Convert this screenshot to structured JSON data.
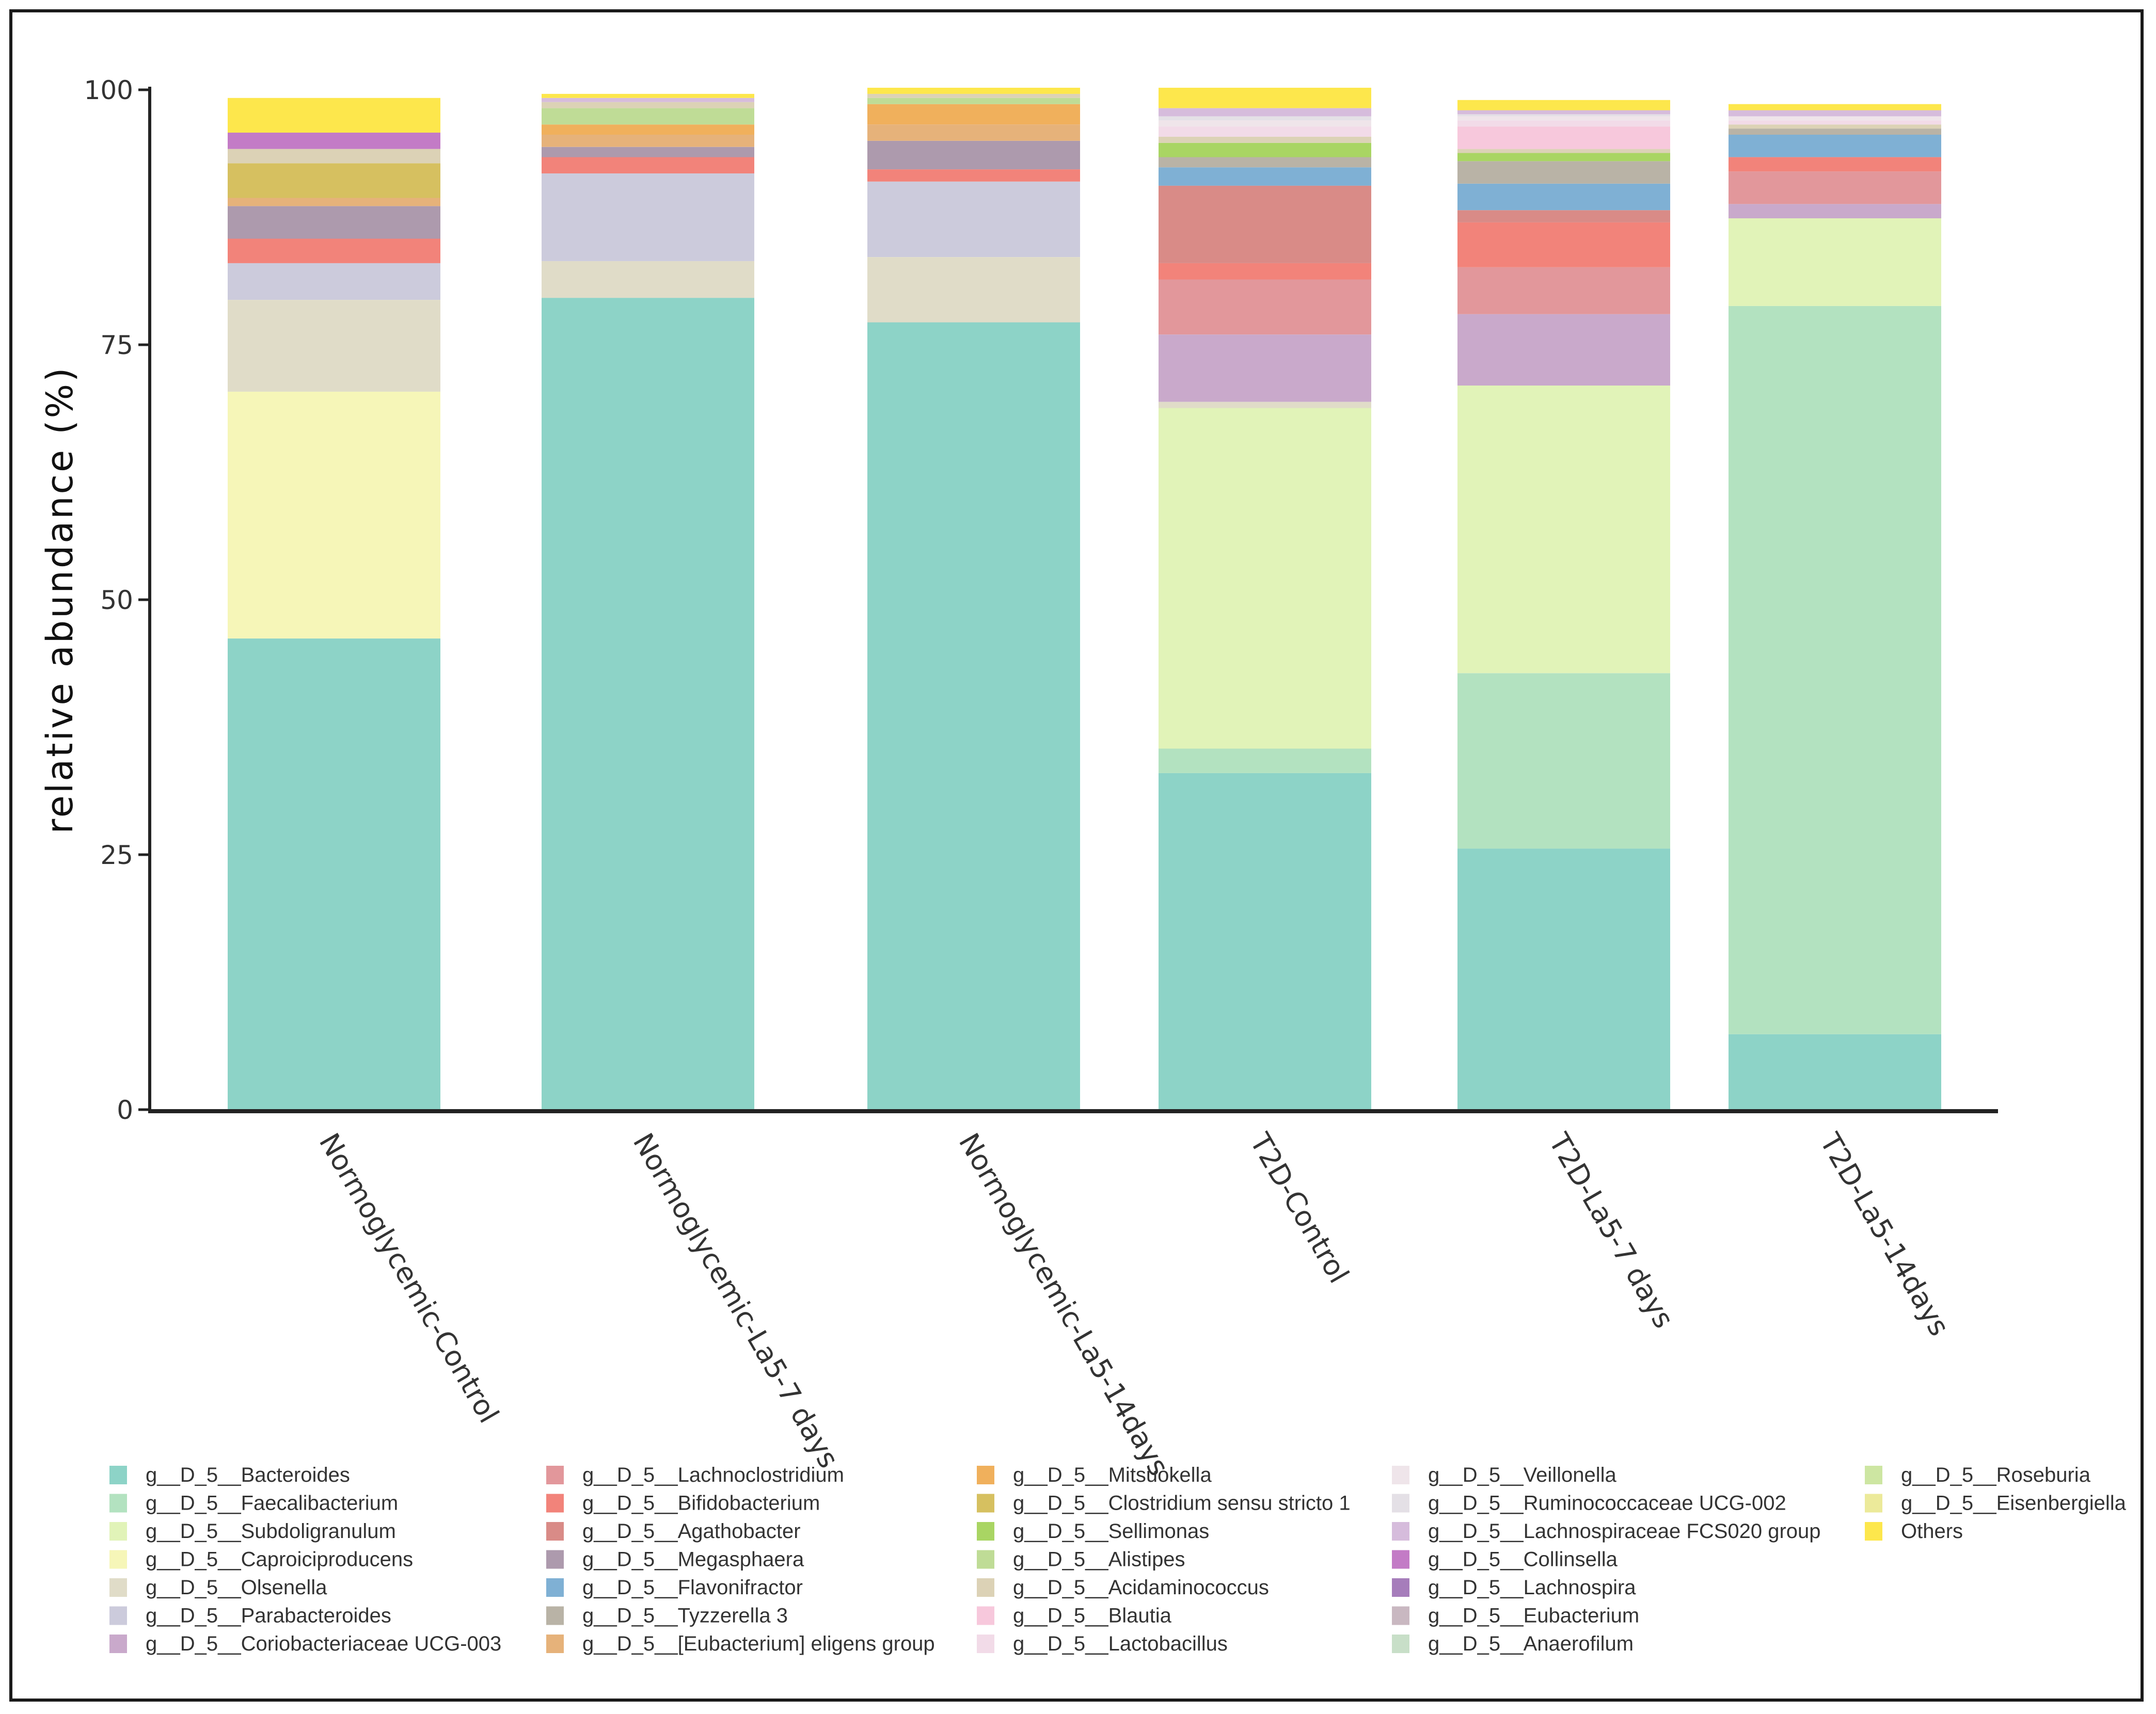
{
  "chart_data": {
    "type": "bar",
    "stacked": true,
    "ylabel": "relative abundance (%)",
    "xlabel": "",
    "ylim": [
      0,
      100
    ],
    "yticks": [
      0,
      25,
      50,
      75,
      100
    ],
    "grid": false,
    "legend_position": "bottom",
    "categories": [
      "Normoglycemic-Control",
      "Normoglycemic-La5-7 days",
      "Normoglycemic-La5-14days",
      "T2D-Control",
      "T2D-La5-7 days",
      "T2D-La5-14days"
    ],
    "series": [
      {
        "name": "g__D_5__Bacteroides",
        "color": "#8dd3c7",
        "values": [
          46.2,
          79.6,
          77.2,
          33.0,
          25.6,
          7.4
        ]
      },
      {
        "name": "g__D_5__Faecalibacterium",
        "color": "#b3e2c0",
        "values": [
          0,
          0,
          0,
          2.4,
          17.2,
          71.4
        ]
      },
      {
        "name": "g__D_5__Subdoligranulum",
        "color": "#e1f3b8",
        "values": [
          0,
          0,
          0,
          33.4,
          28.2,
          8.6
        ]
      },
      {
        "name": "g__D_5__Caproiciproducens",
        "color": "#f6f6b8",
        "values": [
          24.2,
          0,
          0,
          0,
          0,
          0
        ]
      },
      {
        "name": "g__D_5__Olsenella",
        "color": "#e0dcc8",
        "values": [
          9.0,
          3.6,
          6.4,
          0.6,
          0,
          0
        ]
      },
      {
        "name": "g__D_5__Parabacteroides",
        "color": "#cccbdc",
        "values": [
          3.6,
          8.6,
          7.4,
          0,
          0,
          0
        ]
      },
      {
        "name": "g__D_5__Coriobacteriaceae UCG-003",
        "color": "#c9a9cb",
        "values": [
          0,
          0,
          0,
          6.6,
          7.0,
          1.4
        ]
      },
      {
        "name": "g__D_5__Lachnoclostridium",
        "color": "#e2979b",
        "values": [
          0,
          0,
          0,
          5.4,
          4.6,
          3.2
        ]
      },
      {
        "name": "g__D_5__Bifidobacterium",
        "color": "#f2837a",
        "values": [
          2.4,
          1.6,
          1.2,
          1.6,
          4.4,
          1.4
        ]
      },
      {
        "name": "g__D_5__Agathobacter",
        "color": "#d98b87",
        "values": [
          0,
          0,
          0,
          7.6,
          1.2,
          0
        ]
      },
      {
        "name": "g__D_5__Megasphaera",
        "color": "#ad9aad",
        "values": [
          3.2,
          1.0,
          2.8,
          0,
          0,
          0
        ]
      },
      {
        "name": "g__D_5__Flavonifractor",
        "color": "#7fb0d4",
        "values": [
          0,
          0,
          0,
          1.8,
          2.6,
          2.2
        ]
      },
      {
        "name": "g__D_5__Tyzzerella 3",
        "color": "#b9b3a6",
        "values": [
          0,
          0,
          0,
          1.0,
          2.2,
          0.6
        ]
      },
      {
        "name": "g__D_5__[Eubacterium] eligens group",
        "color": "#e6b27a",
        "values": [
          0.8,
          1.2,
          1.6,
          0,
          0,
          0
        ]
      },
      {
        "name": "g__D_5__Mitsuokella",
        "color": "#f0b05c",
        "values": [
          0,
          1.0,
          2.0,
          0,
          0,
          0
        ]
      },
      {
        "name": "g__D_5__Clostridium sensu stricto 1",
        "color": "#d6c060",
        "values": [
          3.4,
          0,
          0,
          0,
          0,
          0
        ]
      },
      {
        "name": "g__D_5__Sellimonas",
        "color": "#a9d563",
        "values": [
          0,
          0,
          0,
          1.4,
          0.8,
          0
        ]
      },
      {
        "name": "g__D_5__Alistipes",
        "color": "#bfdc96",
        "values": [
          0,
          1.6,
          0.6,
          0,
          0,
          0
        ]
      },
      {
        "name": "g__D_5__Acidaminococcus",
        "color": "#dcd2b6",
        "values": [
          1.4,
          0.6,
          0.4,
          0.6,
          0.4,
          0.4
        ]
      },
      {
        "name": "g__D_5__Blautia",
        "color": "#f7c8dc",
        "values": [
          0,
          0,
          0,
          0,
          2.2,
          0
        ]
      },
      {
        "name": "g__D_5__Lactobacillus",
        "color": "#f2dbe8",
        "values": [
          0,
          0,
          0,
          1.0,
          0.6,
          0.4
        ]
      },
      {
        "name": "g__D_5__Veillonella",
        "color": "#efe5ea",
        "values": [
          0,
          0,
          0,
          0.6,
          0.4,
          0.4
        ]
      },
      {
        "name": "g__D_5__Ruminococcaceae UCG-002",
        "color": "#e4e0e6",
        "values": [
          0,
          0,
          0,
          0.4,
          0.2,
          0
        ]
      },
      {
        "name": "g__D_5__Lachnospiraceae FCS020 group",
        "color": "#d6bcdc",
        "values": [
          0,
          0.4,
          0,
          0.8,
          0.4,
          0.6
        ]
      },
      {
        "name": "g__D_5__Collinsella",
        "color": "#c37bc6",
        "values": [
          1.6,
          0,
          0,
          0,
          0,
          0
        ]
      },
      {
        "name": "g__D_5__Lachnospira",
        "color": "#a67dbb",
        "values": [
          0,
          0,
          0,
          0,
          0,
          0
        ]
      },
      {
        "name": "g__D_5__Eubacterium",
        "color": "#c9b8c1",
        "values": [
          0,
          0,
          0,
          0,
          0,
          0
        ]
      },
      {
        "name": "g__D_5__Anaerofilum",
        "color": "#c8dfc8",
        "values": [
          0,
          0,
          0,
          0,
          0,
          0
        ]
      },
      {
        "name": "g__D_5__Roseburia",
        "color": "#cde6a2",
        "values": [
          0,
          0,
          0,
          0,
          0,
          0
        ]
      },
      {
        "name": "g__D_5__Eisenbergiella",
        "color": "#ecea9a",
        "values": [
          0,
          0,
          0,
          0,
          0,
          0
        ]
      },
      {
        "name": "Others",
        "color": "#fde74c",
        "values": [
          3.4,
          0.4,
          0.6,
          2.0,
          1.0,
          0.6
        ]
      }
    ]
  }
}
